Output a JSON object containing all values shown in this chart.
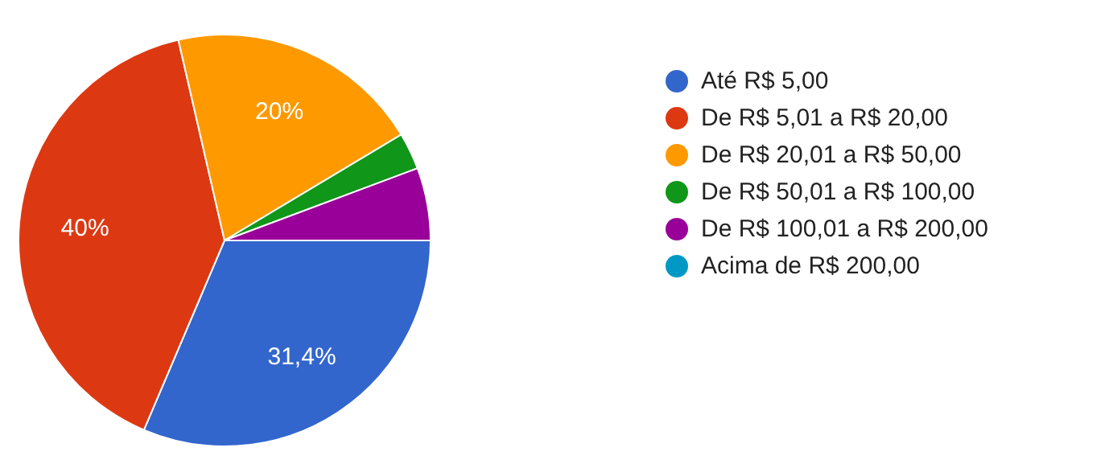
{
  "chart_data": {
    "type": "pie",
    "categories": [
      "Até R$ 5,00",
      "De R$ 5,01 a R$ 20,00",
      "De R$ 20,01 a R$ 50,00",
      "De R$ 50,01 a R$ 100,00",
      "De R$ 100,01 a R$ 200,00",
      "Acima de R$ 200,00"
    ],
    "values": [
      31.4,
      40,
      20,
      2.9,
      5.7,
      0
    ],
    "colors": [
      "#3366cc",
      "#dc3912",
      "#ff9900",
      "#109618",
      "#990099",
      "#0099c6"
    ],
    "value_labels": [
      "31,4%",
      "40%",
      "20%",
      null,
      null,
      null
    ],
    "legend": "right"
  }
}
